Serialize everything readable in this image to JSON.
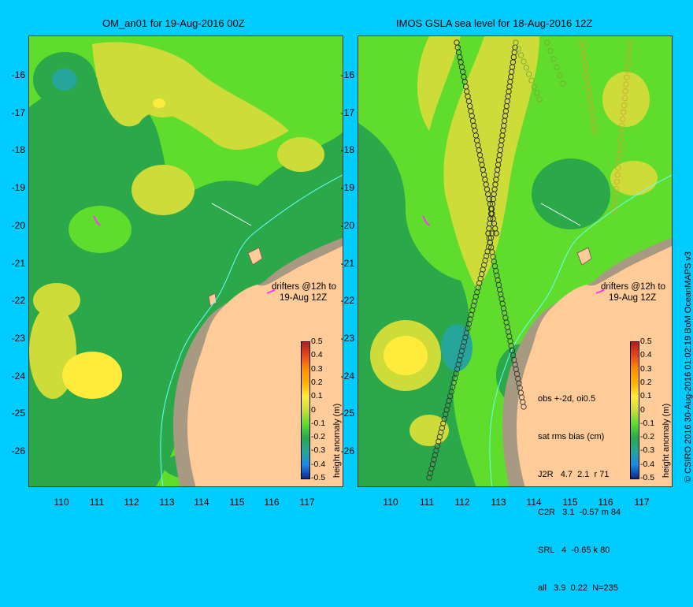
{
  "left_panel": {
    "title": "OM_an01 for 19-Aug-2016 00Z",
    "note_line1": "drifters @12h to",
    "note_line2": "19-Aug 12Z"
  },
  "right_panel": {
    "title": "IMOS GSLA sea level  for 18-Aug-2016 12Z",
    "note_line1": "drifters @12h to",
    "note_line2": "19-Aug 12Z",
    "stats": {
      "header1": "obs +-2d, oi0.5",
      "header2": "sat rms bias (cm)",
      "rows": [
        "J2R   4.7  2.1  r 71",
        "C2R   3.1  -0.57 m 84",
        "SRL   4  -0.65 k 80",
        "all   3.9  0.22  N=235"
      ]
    }
  },
  "axes": {
    "lat_ticks": [
      "-16",
      "-17",
      "-18",
      "-19",
      "-20",
      "-21",
      "-22",
      "-23",
      "-24",
      "-25",
      "-26"
    ],
    "lon_ticks": [
      "110",
      "111",
      "112",
      "113",
      "114",
      "115",
      "116",
      "117"
    ]
  },
  "colorbar": {
    "title": "height anomaly (m)",
    "ticks": [
      "0.5",
      "0.4",
      "0.3",
      "0.2",
      "0.1",
      "0",
      "-0.1",
      "-0.2",
      "-0.3",
      "-0.4",
      "-0.5"
    ],
    "colors": [
      "#b71c1c",
      "#e64a19",
      "#ff8f00",
      "#ffb300",
      "#ffeb3b",
      "#cddc39",
      "#5fdc2c",
      "#2aa84a",
      "#26a69a",
      "#1e88e5",
      "#0d2a8a"
    ]
  },
  "credit": "© CSIRO 2016   30-Aug-2016 01:02:19 BoM OceanMAPS v3",
  "colors": {
    "background": "#00ccff",
    "land": "#ffcc99",
    "bathymetry": "#a89a82",
    "coastline_track": "#66ffff",
    "drifter": "#ff33ff"
  }
}
